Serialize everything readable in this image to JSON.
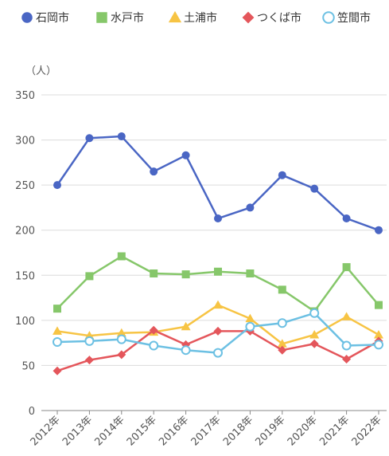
{
  "chart_data": {
    "type": "line",
    "title": "",
    "unit_label": "（人）",
    "xlabel": "",
    "ylabel": "",
    "ylim": [
      0,
      350
    ],
    "yticks": [
      0,
      50,
      100,
      150,
      200,
      250,
      300,
      350
    ],
    "grid": true,
    "legend_position": "top",
    "categories": [
      "2012年",
      "2013年",
      "2014年",
      "2015年",
      "2016年",
      "2017年",
      "2018年",
      "2019年",
      "2020年",
      "2021年",
      "2022年"
    ],
    "series": [
      {
        "name": "石岡市",
        "color": "#4a66c4",
        "marker": "circle",
        "values": [
          250,
          302,
          304,
          265,
          283,
          213,
          225,
          261,
          246,
          213,
          200
        ]
      },
      {
        "name": "水戸市",
        "color": "#86c76a",
        "marker": "square",
        "values": [
          113,
          149,
          171,
          152,
          151,
          154,
          152,
          134,
          110,
          159,
          117
        ]
      },
      {
        "name": "土浦市",
        "color": "#f7c444",
        "marker": "triangle",
        "values": [
          88,
          83,
          86,
          87,
          93,
          117,
          102,
          74,
          84,
          104,
          84
        ]
      },
      {
        "name": "つくば市",
        "color": "#e4565b",
        "marker": "diamond",
        "values": [
          44,
          56,
          62,
          89,
          73,
          88,
          88,
          67,
          74,
          57,
          77
        ]
      },
      {
        "name": "笠間市",
        "color": "#6cc0e3",
        "marker": "hollow-circle",
        "values": [
          76,
          77,
          79,
          72,
          67,
          64,
          93,
          97,
          108,
          72,
          73
        ]
      }
    ]
  }
}
